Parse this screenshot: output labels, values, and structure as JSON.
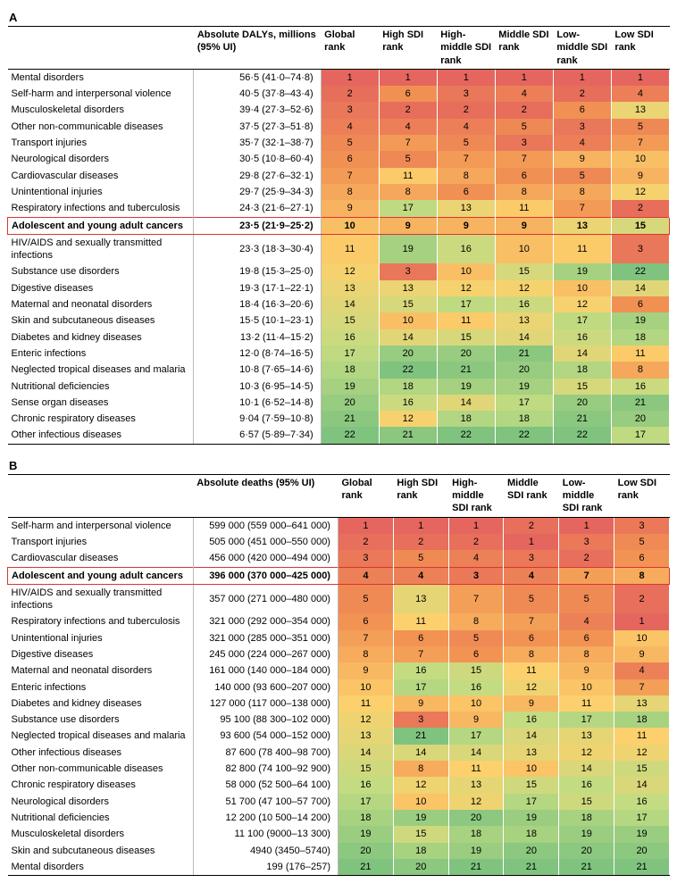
{
  "heatmap_palette_note": "ranks colored red→yellow→green by rank within each table",
  "panelA": {
    "label": "A",
    "value_header": "Absolute DALYs, millions (95% UI)",
    "rank_headers": [
      "Global rank",
      "High SDI rank",
      "High-middle SDI rank",
      "Middle SDI rank",
      "Low-middle SDI rank",
      "Low SDI rank"
    ],
    "n_rows": 22,
    "rows": [
      {
        "name": "Mental disorders",
        "value": "56·5 (41·0–74·8)",
        "ranks": [
          1,
          1,
          1,
          1,
          1,
          1
        ]
      },
      {
        "name": "Self-harm and interpersonal violence",
        "value": "40·5 (37·8–43·4)",
        "ranks": [
          2,
          6,
          3,
          4,
          2,
          4
        ]
      },
      {
        "name": "Musculoskeletal disorders",
        "value": "39·4 (27·3–52·6)",
        "ranks": [
          3,
          2,
          2,
          2,
          6,
          13
        ]
      },
      {
        "name": "Other non-communicable diseases",
        "value": "37·5 (27·3–51·8)",
        "ranks": [
          4,
          4,
          4,
          5,
          3,
          5
        ]
      },
      {
        "name": "Transport injuries",
        "value": "35·7 (32·1–38·7)",
        "ranks": [
          5,
          7,
          5,
          3,
          4,
          7
        ]
      },
      {
        "name": "Neurological disorders",
        "value": "30·5 (10·8–60·4)",
        "ranks": [
          6,
          5,
          7,
          7,
          9,
          10
        ]
      },
      {
        "name": "Cardiovascular diseases",
        "value": "29·8 (27·6–32·1)",
        "ranks": [
          7,
          11,
          8,
          6,
          5,
          9
        ]
      },
      {
        "name": "Unintentional injuries",
        "value": "29·7 (25·9–34·3)",
        "ranks": [
          8,
          8,
          6,
          8,
          8,
          12
        ]
      },
      {
        "name": "Respiratory infections and tuberculosis",
        "value": "24·3 (21·6–27·1)",
        "ranks": [
          9,
          17,
          13,
          11,
          7,
          2
        ]
      },
      {
        "name": "Adolescent and young adult cancers",
        "value": "23·5 (21·9–25·2)",
        "ranks": [
          10,
          9,
          9,
          9,
          13,
          15
        ],
        "highlight": true
      },
      {
        "name": "HIV/AIDS and sexually transmitted infections",
        "value": "23·3 (18·3–30·4)",
        "ranks": [
          11,
          19,
          16,
          10,
          11,
          3
        ]
      },
      {
        "name": "Substance use disorders",
        "value": "19·8 (15·3–25·0)",
        "ranks": [
          12,
          3,
          10,
          15,
          19,
          22
        ]
      },
      {
        "name": "Digestive diseases",
        "value": "19·3 (17·1–22·1)",
        "ranks": [
          13,
          13,
          12,
          12,
          10,
          14
        ]
      },
      {
        "name": "Maternal and neonatal disorders",
        "value": "18·4 (16·3–20·6)",
        "ranks": [
          14,
          15,
          17,
          16,
          12,
          6
        ]
      },
      {
        "name": "Skin and subcutaneous diseases",
        "value": "15·5 (10·1–23·1)",
        "ranks": [
          15,
          10,
          11,
          13,
          17,
          19
        ]
      },
      {
        "name": "Diabetes and kidney diseases",
        "value": "13·2 (11·4–15·2)",
        "ranks": [
          16,
          14,
          15,
          14,
          16,
          18
        ]
      },
      {
        "name": "Enteric infections",
        "value": "12·0 (8·74–16·5)",
        "ranks": [
          17,
          20,
          20,
          21,
          14,
          11
        ]
      },
      {
        "name": "Neglected tropical diseases and malaria",
        "value": "10·8 (7·65–14·6)",
        "ranks": [
          18,
          22,
          21,
          20,
          18,
          8
        ]
      },
      {
        "name": "Nutritional deficiencies",
        "value": "10·3 (6·95–14·5)",
        "ranks": [
          19,
          18,
          19,
          19,
          15,
          16
        ]
      },
      {
        "name": "Sense organ diseases",
        "value": "10·1 (6·52–14·8)",
        "ranks": [
          20,
          16,
          14,
          17,
          20,
          21
        ]
      },
      {
        "name": "Chronic respiratory diseases",
        "value": "9·04 (7·59–10·8)",
        "ranks": [
          21,
          12,
          18,
          18,
          21,
          20
        ]
      },
      {
        "name": "Other infectious diseases",
        "value": "6·57 (5·89–7·34)",
        "ranks": [
          22,
          21,
          22,
          22,
          22,
          17
        ]
      }
    ]
  },
  "panelB": {
    "label": "B",
    "value_header": "Absolute deaths (95% UI)",
    "rank_headers": [
      "Global rank",
      "High SDI rank",
      "High-middle SDI rank",
      "Middle SDI rank",
      "Low-middle SDI rank",
      "Low SDI rank"
    ],
    "n_rows": 21,
    "rows": [
      {
        "name": "Self-harm and interpersonal violence",
        "value": "599 000 (559 000–641 000)",
        "ranks": [
          1,
          1,
          1,
          2,
          1,
          3
        ]
      },
      {
        "name": "Transport injuries",
        "value": "505 000 (451 000–550 000)",
        "ranks": [
          2,
          2,
          2,
          1,
          3,
          5
        ]
      },
      {
        "name": "Cardiovascular diseases",
        "value": "456 000 (420 000–494 000)",
        "ranks": [
          3,
          5,
          4,
          3,
          2,
          6
        ]
      },
      {
        "name": "Adolescent and young adult cancers",
        "value": "396 000 (370 000–425 000)",
        "ranks": [
          4,
          4,
          3,
          4,
          7,
          8
        ],
        "highlight": true
      },
      {
        "name": "HIV/AIDS and sexually transmitted infections",
        "value": "357 000 (271 000–480 000)",
        "ranks": [
          5,
          13,
          7,
          5,
          5,
          2
        ]
      },
      {
        "name": "Respiratory infections and tuberculosis",
        "value": "321 000 (292 000–354 000)",
        "ranks": [
          6,
          11,
          8,
          7,
          4,
          1
        ]
      },
      {
        "name": "Unintentional injuries",
        "value": "321 000 (285 000–351 000)",
        "ranks": [
          7,
          6,
          5,
          6,
          6,
          10
        ]
      },
      {
        "name": "Digestive diseases",
        "value": "245 000 (224 000–267 000)",
        "ranks": [
          8,
          7,
          6,
          8,
          8,
          9
        ]
      },
      {
        "name": "Maternal and neonatal disorders",
        "value": "161 000 (140 000–184 000)",
        "ranks": [
          9,
          16,
          15,
          11,
          9,
          4
        ]
      },
      {
        "name": "Enteric infections",
        "value": "140 000 (93 600–207 000)",
        "ranks": [
          10,
          17,
          16,
          12,
          10,
          7
        ]
      },
      {
        "name": "Diabetes and kidney diseases",
        "value": "127 000 (117 000–138 000)",
        "ranks": [
          11,
          9,
          10,
          9,
          11,
          13
        ]
      },
      {
        "name": "Substance use disorders",
        "value": "95 100 (88 300–102 000)",
        "ranks": [
          12,
          3,
          9,
          16,
          17,
          18
        ]
      },
      {
        "name": "Neglected tropical diseases and malaria",
        "value": "93 600 (54 000–152 000)",
        "ranks": [
          13,
          21,
          17,
          14,
          13,
          11
        ]
      },
      {
        "name": "Other infectious diseases",
        "value": "87 600 (78 400–98 700)",
        "ranks": [
          14,
          14,
          14,
          13,
          12,
          12
        ]
      },
      {
        "name": "Other non-communicable diseases",
        "value": "82 800 (74 100–92 900)",
        "ranks": [
          15,
          8,
          11,
          10,
          14,
          15
        ]
      },
      {
        "name": "Chronic respiratory diseases",
        "value": "58 000 (52 500–64 100)",
        "ranks": [
          16,
          12,
          13,
          15,
          16,
          14
        ]
      },
      {
        "name": "Neurological disorders",
        "value": "51 700 (47 100–57 700)",
        "ranks": [
          17,
          10,
          12,
          17,
          15,
          16
        ]
      },
      {
        "name": "Nutritional deficiencies",
        "value": "12 200 (10 500–14 200)",
        "ranks": [
          18,
          19,
          20,
          19,
          18,
          17
        ]
      },
      {
        "name": "Musculoskeletal disorders",
        "value": "11 100 (9000–13 300)",
        "ranks": [
          19,
          15,
          18,
          18,
          19,
          19
        ]
      },
      {
        "name": "Skin and subcutaneous diseases",
        "value": "4940 (3450–5740)",
        "ranks": [
          20,
          18,
          19,
          20,
          20,
          20
        ]
      },
      {
        "name": "Mental disorders",
        "value": "199 (176–257)",
        "ranks": [
          21,
          20,
          21,
          21,
          21,
          21
        ]
      }
    ]
  }
}
